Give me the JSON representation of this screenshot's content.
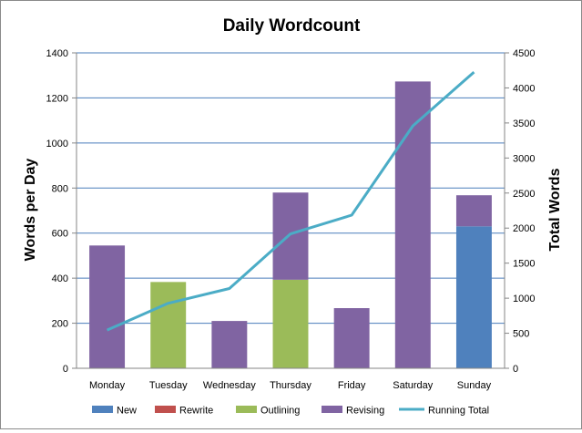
{
  "chart_data": {
    "type": "bar",
    "stacked": true,
    "title": "Daily Wordcount",
    "xlabel": "",
    "ylabel": "Words per Day",
    "y2label": "Total Words",
    "categories": [
      "Monday",
      "Tuesday",
      "Wednesday",
      "Thursday",
      "Friday",
      "Saturday",
      "Sunday"
    ],
    "ylim": [
      0,
      1400
    ],
    "yticks": [
      0,
      200,
      400,
      600,
      800,
      1000,
      1200,
      1400
    ],
    "y2lim": [
      0,
      4500
    ],
    "y2ticks": [
      0,
      500,
      1000,
      1500,
      2000,
      2500,
      3000,
      3500,
      4000,
      4500
    ],
    "grid": true,
    "legend_position": "bottom",
    "series": [
      {
        "name": "New",
        "kind": "bar",
        "axis": "left",
        "color": "#4f81bd",
        "values": [
          0,
          0,
          0,
          0,
          0,
          0,
          630
        ]
      },
      {
        "name": "Rewrite",
        "kind": "bar",
        "axis": "left",
        "color": "#c0504d",
        "values": [
          0,
          0,
          0,
          0,
          0,
          0,
          0
        ]
      },
      {
        "name": "Outlining",
        "kind": "bar",
        "axis": "left",
        "color": "#9bbb59",
        "values": [
          0,
          383,
          0,
          393,
          0,
          0,
          0
        ]
      },
      {
        "name": "Revising",
        "kind": "bar",
        "axis": "left",
        "color": "#8064a2",
        "values": [
          545,
          0,
          210,
          387,
          267,
          1273,
          138
        ]
      },
      {
        "name": "Running Total",
        "kind": "line",
        "axis": "right",
        "color": "#4bacc6",
        "values": [
          545,
          928,
          1138,
          1918,
          2185,
          3458,
          4226
        ]
      }
    ]
  }
}
